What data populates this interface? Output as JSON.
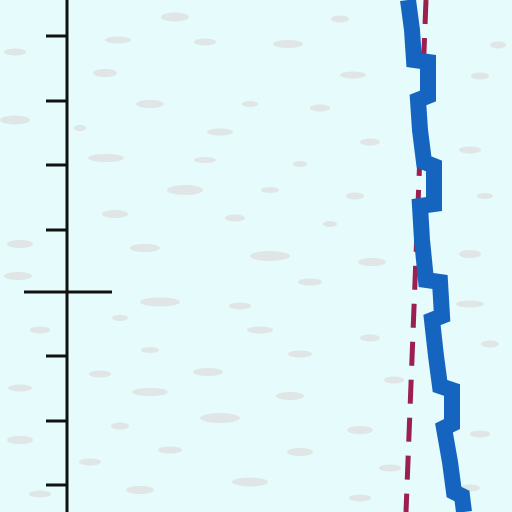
{
  "scene": {
    "background_color": "#e6fbfc",
    "snow_patch_color": "#dedede",
    "ruler_color": "#111111",
    "ruler_minor_ticks": 7,
    "ruler_major_ticks": 1,
    "path_color": "#1565c0",
    "boundary_line_color": "#9b1f4f",
    "boundary_line_style": "dashed"
  }
}
